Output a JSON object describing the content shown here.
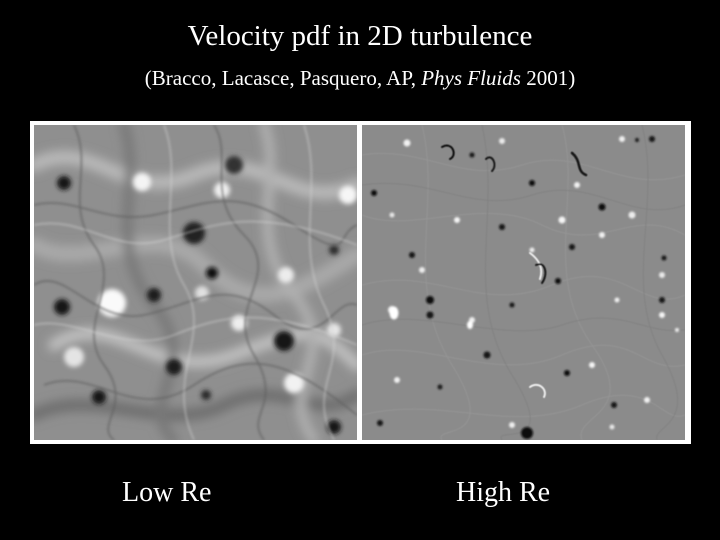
{
  "slide": {
    "title": "Velocity pdf in 2D turbulence",
    "citation": {
      "authors": "(Bracco, Lacasce, Pasquero, AP, ",
      "journal": "Phys Fluids",
      "year": " 2001)"
    }
  },
  "panels": {
    "left_label": "Low Re",
    "right_label": "High Re"
  }
}
